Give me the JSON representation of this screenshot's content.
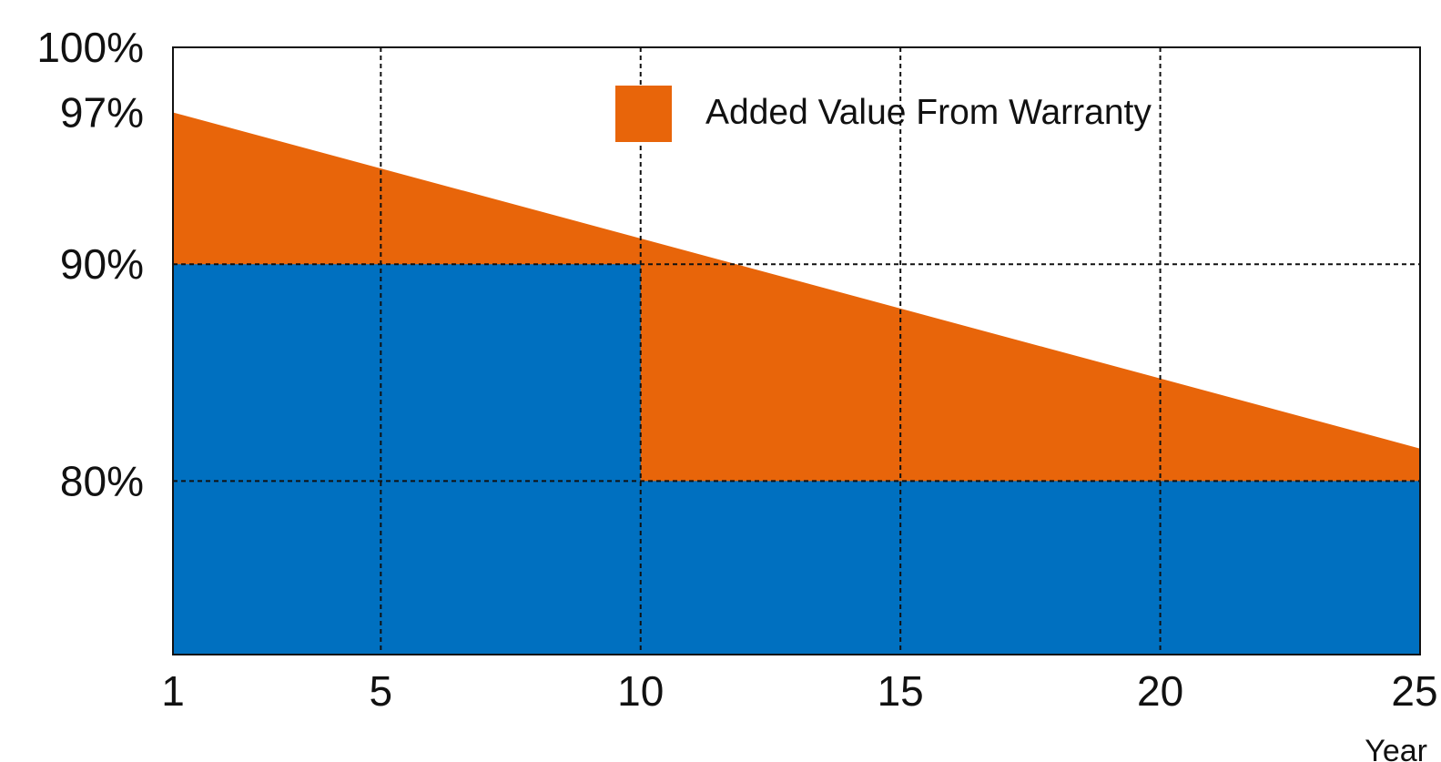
{
  "chart_data": {
    "type": "area",
    "xlabel": "Year",
    "ylabel": "",
    "x_ticks": [
      1,
      5,
      10,
      15,
      20,
      25
    ],
    "y_ticks": [
      "100%",
      "97%",
      "90%",
      "80%"
    ],
    "y_tick_values": [
      100,
      97,
      90,
      80
    ],
    "xlim": [
      1,
      25
    ],
    "ylim": [
      72,
      100
    ],
    "grid": true,
    "legend_position": "top-center",
    "series": [
      {
        "name": "",
        "kind": "step",
        "color": "#0070C0",
        "points": [
          [
            1,
            90
          ],
          [
            10,
            90
          ],
          [
            10,
            80
          ],
          [
            25,
            80
          ]
        ]
      },
      {
        "name": "Added Value From Warranty",
        "kind": "linear",
        "color": "#E8650A",
        "points": [
          [
            1,
            97
          ],
          [
            25,
            81.5
          ]
        ]
      }
    ],
    "legend": [
      {
        "label": "Added Value From Warranty",
        "color": "#E8650A"
      }
    ]
  }
}
